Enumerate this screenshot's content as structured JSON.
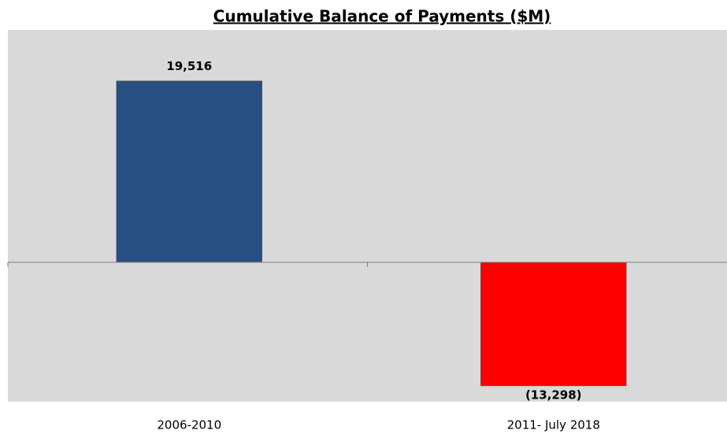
{
  "chart_data": {
    "type": "bar",
    "title": "Cumulative Balance of Payments ($M)",
    "categories": [
      "2006-2010",
      "2011- July 2018"
    ],
    "values": [
      19516,
      -13298
    ],
    "value_labels": [
      "19,516",
      "(13,298)"
    ],
    "colors": [
      "#274f82",
      "#ff0000"
    ],
    "ylim": [
      -15000,
      25000
    ]
  }
}
